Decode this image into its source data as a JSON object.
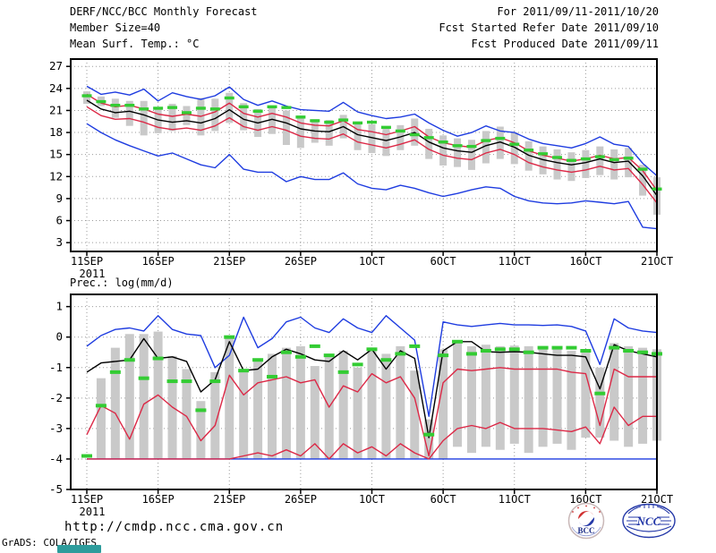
{
  "header": {
    "title": "DERF/NCC/BCC Monthly Forecast",
    "member_size": "Member Size=40",
    "for_range": "For 2011/09/11-2011/10/20",
    "fcst_started": "Fcst Started Refer Date 2011/09/10",
    "fcst_produced": "Fcst Produced Date 2011/09/11"
  },
  "footer": {
    "url": "http://cmdp.ncc.cma.gov.cn",
    "grads_credit": "GrADS: COLA/IGES",
    "logos": [
      {
        "label": "BCC"
      },
      {
        "label": "NCC"
      }
    ]
  },
  "colors": {
    "max_min_line": "#1e3ce0",
    "spread_line": "#dc2846",
    "mean_line": "#000000",
    "obs_dash": "#33cc33",
    "ensemble_bar": "#c9c9c9",
    "grid": "#9a9a9a",
    "frame": "#000000",
    "teal_marker": "#2e9c9c",
    "bcc_red": "#d03030",
    "logo_blue": "#2438a8"
  },
  "chart_data": [
    {
      "id": "temp",
      "type": "line",
      "title": "Mean Surf. Temp.: °C",
      "ylabel": "Mean Surf. Temp. (°C)",
      "ylim": [
        1.8,
        28.0
      ],
      "y_ticks": [
        3,
        6,
        9,
        12,
        15,
        18,
        21,
        24,
        27
      ],
      "x_tick_labels": [
        "11SEP",
        "16SEP",
        "21SEP",
        "26SEP",
        "1OCT",
        "6OCT",
        "11OCT",
        "16OCT",
        "21OCT"
      ],
      "x_tick_days": [
        0,
        5,
        10,
        15,
        20,
        25,
        30,
        35,
        40
      ],
      "year_label": "2011",
      "n_days": 41,
      "grid": true,
      "series": [
        {
          "name": "ensemble-max",
          "color_key": "max_min_line",
          "values": [
            24.3,
            23.2,
            23.5,
            23.1,
            23.9,
            22.3,
            23.4,
            22.9,
            22.5,
            23.0,
            24.2,
            22.5,
            21.7,
            22.3,
            21.6,
            21.1,
            21.0,
            20.9,
            22.1,
            20.8,
            20.3,
            19.9,
            20.1,
            20.5,
            19.3,
            18.3,
            17.5,
            18.0,
            18.9,
            18.2,
            18.0,
            17.1,
            16.5,
            16.2,
            15.9,
            16.5,
            17.4,
            16.4,
            16.1,
            13.8,
            12.1
          ]
        },
        {
          "name": "ensemble-min",
          "color_key": "max_min_line",
          "values": [
            19.2,
            18.0,
            17.0,
            16.2,
            15.5,
            14.8,
            15.2,
            14.4,
            13.6,
            13.2,
            15.0,
            13.0,
            12.6,
            12.6,
            11.3,
            12.0,
            11.6,
            11.6,
            12.5,
            11.0,
            10.4,
            10.2,
            10.8,
            10.4,
            9.8,
            9.3,
            9.7,
            10.2,
            10.6,
            10.4,
            9.3,
            8.7,
            8.4,
            8.3,
            8.4,
            8.7,
            8.5,
            8.3,
            8.6,
            5.1,
            4.9
          ]
        },
        {
          "name": "upper-spread",
          "color_key": "spread_line",
          "values": [
            23.2,
            22.0,
            21.5,
            21.7,
            21.2,
            20.5,
            20.2,
            20.5,
            20.2,
            20.8,
            22.0,
            20.6,
            20.1,
            20.6,
            20.1,
            19.3,
            19.0,
            18.9,
            19.6,
            18.4,
            18.1,
            17.7,
            18.2,
            18.8,
            17.4,
            16.6,
            16.2,
            16.0,
            16.9,
            17.3,
            16.6,
            15.5,
            14.9,
            14.5,
            14.1,
            14.4,
            14.9,
            14.4,
            14.6,
            12.8,
            10.1
          ]
        },
        {
          "name": "lower-spread",
          "color_key": "spread_line",
          "values": [
            21.5,
            20.3,
            19.8,
            19.9,
            19.4,
            18.7,
            18.4,
            18.6,
            18.3,
            18.9,
            20.0,
            18.8,
            18.3,
            18.8,
            18.3,
            17.5,
            17.2,
            17.1,
            17.8,
            16.7,
            16.3,
            15.9,
            16.4,
            17.0,
            15.7,
            14.9,
            14.5,
            14.3,
            15.2,
            15.7,
            15.0,
            13.9,
            13.3,
            12.9,
            12.6,
            12.9,
            13.4,
            12.9,
            13.1,
            10.9,
            8.4
          ]
        },
        {
          "name": "ensemble-mean",
          "color_key": "mean_line",
          "values": [
            22.4,
            21.2,
            20.7,
            20.9,
            20.4,
            19.7,
            19.4,
            19.6,
            19.3,
            19.9,
            21.1,
            19.8,
            19.3,
            19.8,
            19.3,
            18.5,
            18.2,
            18.1,
            18.8,
            17.7,
            17.3,
            16.9,
            17.4,
            18.0,
            16.7,
            15.9,
            15.5,
            15.3,
            16.2,
            16.7,
            16.0,
            14.9,
            14.3,
            13.9,
            13.6,
            13.9,
            14.4,
            13.9,
            14.1,
            12.1,
            9.4
          ]
        }
      ],
      "obs_dashes": {
        "name": "observation",
        "color_key": "obs_dash",
        "values": [
          23.0,
          22.2,
          21.7,
          21.7,
          21.2,
          21.3,
          21.4,
          20.7,
          21.3,
          21.2,
          22.7,
          21.5,
          20.9,
          21.5,
          21.4,
          20.1,
          19.6,
          19.4,
          19.7,
          19.3,
          19.4,
          18.7,
          18.2,
          17.7,
          17.3,
          16.7,
          16.2,
          16.1,
          16.9,
          17.2,
          16.4,
          15.6,
          15.1,
          14.6,
          14.2,
          14.4,
          14.7,
          14.3,
          14.5,
          13.0,
          10.3
        ]
      },
      "bars": {
        "name": "ensemble-spread-bar",
        "color_key": "ensemble_bar",
        "ranges": [
          [
            21.9,
            23.6
          ],
          [
            21.6,
            22.9
          ],
          [
            20.0,
            22.6
          ],
          [
            18.9,
            22.3
          ],
          [
            17.6,
            22.3
          ],
          [
            17.9,
            21.4
          ],
          [
            18.2,
            21.9
          ],
          [
            19.0,
            21.6
          ],
          [
            17.6,
            22.7
          ],
          [
            18.2,
            22.6
          ],
          [
            19.3,
            23.4
          ],
          [
            18.3,
            22.0
          ],
          [
            17.4,
            21.2
          ],
          [
            17.8,
            21.6
          ],
          [
            16.3,
            21.0
          ],
          [
            15.9,
            20.3
          ],
          [
            16.6,
            19.8
          ],
          [
            16.2,
            19.7
          ],
          [
            17.2,
            20.4
          ],
          [
            15.6,
            19.4
          ],
          [
            15.2,
            19.1
          ],
          [
            14.8,
            18.6
          ],
          [
            15.6,
            19.0
          ],
          [
            16.2,
            19.9
          ],
          [
            14.4,
            18.5
          ],
          [
            13.5,
            17.6
          ],
          [
            13.3,
            17.2
          ],
          [
            12.9,
            17.0
          ],
          [
            13.8,
            18.2
          ],
          [
            14.4,
            18.8
          ],
          [
            13.7,
            18.0
          ],
          [
            12.8,
            16.8
          ],
          [
            12.3,
            16.1
          ],
          [
            11.6,
            15.7
          ],
          [
            11.4,
            15.3
          ],
          [
            11.8,
            15.6
          ],
          [
            12.2,
            16.1
          ],
          [
            11.6,
            15.7
          ],
          [
            11.9,
            15.9
          ],
          [
            9.4,
            13.6
          ],
          [
            6.8,
            11.9
          ]
        ]
      }
    },
    {
      "id": "prec",
      "type": "line",
      "title": "Prec.: log(mm/d)",
      "ylabel": "Prec. log(mm/d)",
      "ylim": [
        -5,
        1.4
      ],
      "y_ticks": [
        1,
        0,
        -1,
        -2,
        -3,
        -4,
        -5
      ],
      "x_tick_labels": [
        "11SEP",
        "16SEP",
        "21SEP",
        "26SEP",
        "1OCT",
        "6OCT",
        "11OCT",
        "16OCT",
        "21OCT"
      ],
      "x_tick_days": [
        0,
        5,
        10,
        15,
        20,
        25,
        30,
        35,
        40
      ],
      "year_label": "2011",
      "n_days": 41,
      "grid": true,
      "series": [
        {
          "name": "ensemble-max",
          "color_key": "max_min_line",
          "values": [
            -0.3,
            0.05,
            0.25,
            0.3,
            0.2,
            0.7,
            0.25,
            0.1,
            0.05,
            -1.0,
            -0.6,
            0.65,
            -0.35,
            -0.05,
            0.5,
            0.65,
            0.3,
            0.15,
            0.6,
            0.3,
            0.15,
            0.7,
            0.3,
            -0.1,
            -2.6,
            0.5,
            0.4,
            0.35,
            0.4,
            0.45,
            0.4,
            0.4,
            0.38,
            0.4,
            0.35,
            0.2,
            -0.9,
            0.6,
            0.3,
            0.2,
            0.15
          ]
        },
        {
          "name": "ensemble-min",
          "color_key": "max_min_line",
          "values": [
            -4,
            -4,
            -4,
            -4,
            -4,
            -4,
            -4,
            -4,
            -4,
            -4,
            -4,
            -4,
            -4,
            -4,
            -4,
            -4,
            -4,
            -4,
            -4,
            -4,
            -4,
            -4,
            -4,
            -4,
            -4,
            -4,
            -4,
            -4,
            -4,
            -4,
            -4,
            -4,
            -4,
            -4,
            -4,
            -4,
            -4,
            -4,
            -4,
            -4,
            -4
          ]
        },
        {
          "name": "upper-spread",
          "color_key": "spread_line",
          "values": [
            -3.2,
            -2.25,
            -2.5,
            -3.35,
            -2.2,
            -1.9,
            -2.3,
            -2.6,
            -3.4,
            -2.9,
            -1.25,
            -1.9,
            -1.5,
            -1.4,
            -1.3,
            -1.5,
            -1.4,
            -2.3,
            -1.6,
            -1.8,
            -1.2,
            -1.5,
            -1.3,
            -2.0,
            -3.9,
            -1.5,
            -1.05,
            -1.1,
            -1.05,
            -1.0,
            -1.05,
            -1.05,
            -1.05,
            -1.05,
            -1.15,
            -1.2,
            -2.9,
            -1.05,
            -1.3,
            -1.3,
            -1.3
          ]
        },
        {
          "name": "lower-spread",
          "color_key": "spread_line",
          "values": [
            -4,
            -4,
            -4,
            -4,
            -4,
            -4,
            -4,
            -4,
            -4,
            -4,
            -4,
            -3.9,
            -3.8,
            -3.9,
            -3.7,
            -3.9,
            -3.5,
            -4,
            -3.5,
            -3.8,
            -3.6,
            -3.9,
            -3.5,
            -3.8,
            -4,
            -3.4,
            -3.0,
            -2.9,
            -3.0,
            -2.8,
            -3.0,
            -3.0,
            -3.0,
            -3.05,
            -3.1,
            -2.95,
            -3.5,
            -2.3,
            -2.9,
            -2.6,
            -2.6
          ]
        },
        {
          "name": "ensemble-mean",
          "color_key": "mean_line",
          "values": [
            -1.15,
            -0.85,
            -0.8,
            -0.75,
            -0.05,
            -0.7,
            -0.65,
            -0.8,
            -1.8,
            -1.4,
            -0.15,
            -1.1,
            -1.05,
            -0.65,
            -0.4,
            -0.55,
            -0.75,
            -0.8,
            -0.45,
            -0.75,
            -0.4,
            -1.05,
            -0.45,
            -0.7,
            -3.3,
            -0.45,
            -0.15,
            -0.15,
            -0.48,
            -0.5,
            -0.48,
            -0.5,
            -0.55,
            -0.6,
            -0.6,
            -0.65,
            -1.7,
            -0.25,
            -0.45,
            -0.55,
            -0.65
          ]
        }
      ],
      "obs_dashes": {
        "name": "observation",
        "color_key": "obs_dash",
        "values": [
          -3.9,
          -2.25,
          -1.15,
          -0.75,
          -1.35,
          -0.7,
          -1.45,
          -1.45,
          -2.4,
          -1.45,
          0.0,
          -1.1,
          -0.75,
          -1.3,
          -0.5,
          -0.65,
          -0.3,
          -0.6,
          -1.15,
          -0.9,
          -0.4,
          -0.75,
          -0.55,
          -0.3,
          -3.2,
          -0.6,
          -0.15,
          -0.55,
          -0.45,
          -0.4,
          -0.4,
          -0.5,
          -0.35,
          -0.35,
          -0.35,
          -0.45,
          -1.85,
          -0.35,
          -0.45,
          -0.5,
          -0.55
        ]
      },
      "bars": {
        "name": "ensemble-spread-bar",
        "color_key": "ensemble_bar",
        "ranges": [
          null,
          [
            -4,
            -1.35
          ],
          [
            -4,
            -0.35
          ],
          [
            -4,
            0.1
          ],
          [
            -4,
            0.1
          ],
          [
            -4,
            0.18
          ],
          [
            -4,
            -0.62
          ],
          [
            -4,
            -1.05
          ],
          [
            -4,
            -2.1
          ],
          [
            -4,
            -1.15
          ],
          [
            -4,
            0.02
          ],
          [
            -4,
            -1.05
          ],
          [
            -4,
            -0.72
          ],
          [
            -4,
            -0.55
          ],
          [
            -4,
            -0.35
          ],
          [
            -4,
            -0.3
          ],
          [
            -4,
            -0.95
          ],
          [
            -4,
            -0.65
          ],
          [
            -4,
            -0.45
          ],
          [
            -4,
            -1.0
          ],
          [
            -4,
            -0.4
          ],
          [
            -4,
            -0.55
          ],
          [
            -4,
            -0.3
          ],
          [
            -4,
            -1.1
          ],
          [
            -4,
            -2.7
          ],
          [
            -4,
            -0.4
          ],
          [
            -3.6,
            -0.15
          ],
          [
            -3.8,
            -0.3
          ],
          [
            -3.6,
            -0.25
          ],
          [
            -3.7,
            -0.3
          ],
          [
            -3.5,
            -0.28
          ],
          [
            -3.8,
            -0.3
          ],
          [
            -3.6,
            -0.35
          ],
          [
            -3.5,
            -0.4
          ],
          [
            -3.7,
            -0.45
          ],
          [
            -3.3,
            -0.5
          ],
          [
            -3.3,
            -1.0
          ],
          [
            -3.4,
            -0.2
          ],
          [
            -3.6,
            -0.3
          ],
          [
            -3.5,
            -0.35
          ],
          [
            -3.4,
            -0.4
          ]
        ]
      }
    }
  ]
}
